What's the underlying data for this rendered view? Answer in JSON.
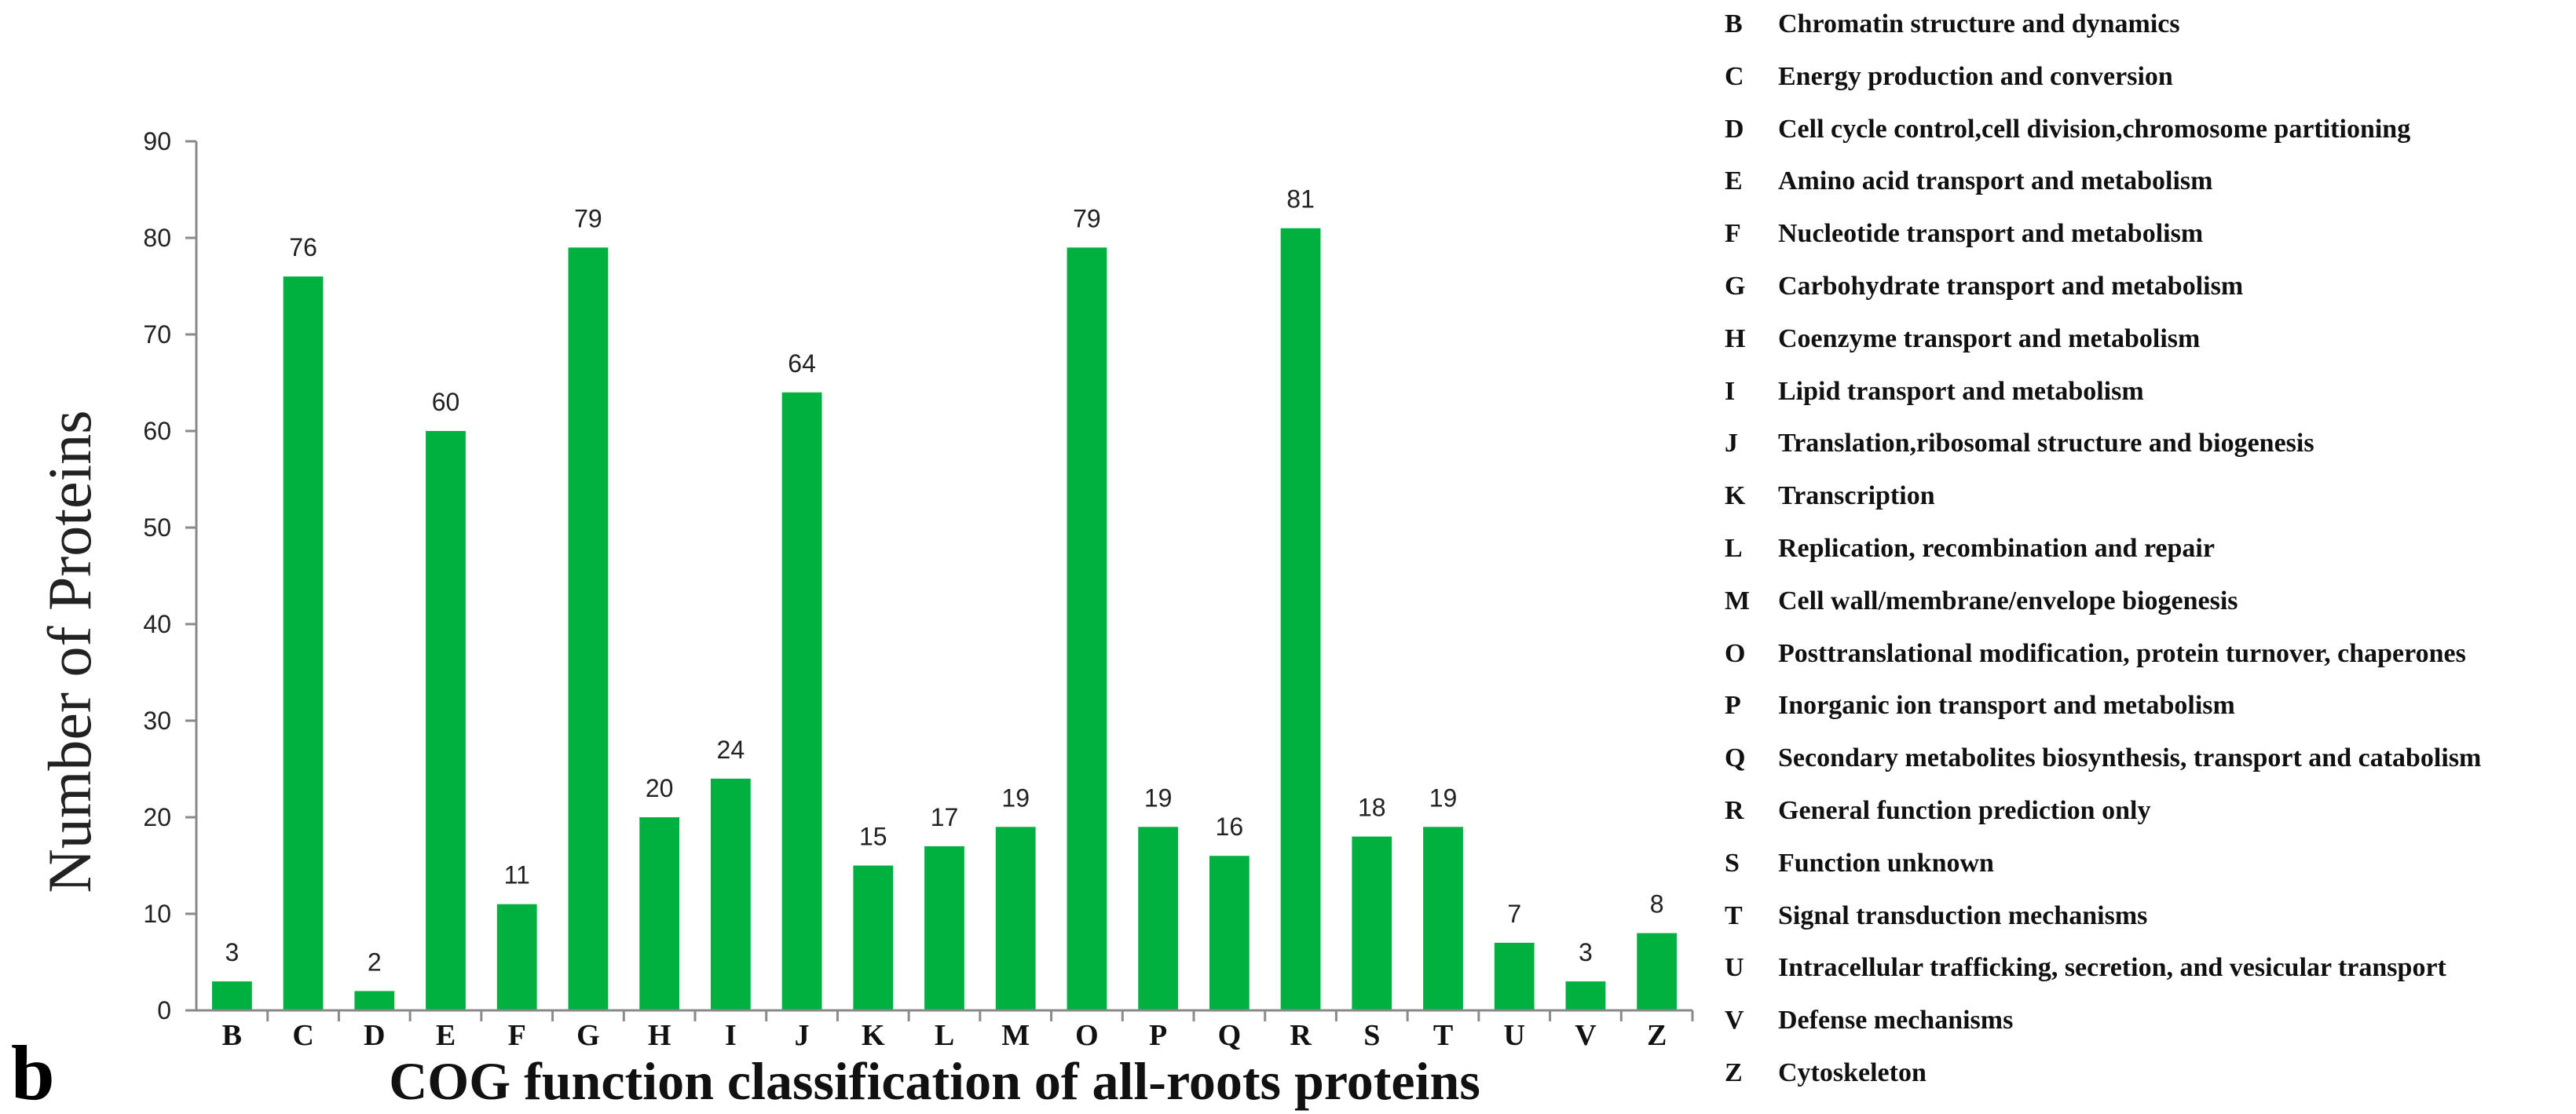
{
  "panel_label": "b",
  "chart_data": {
    "type": "bar",
    "title": "",
    "xlabel": "COG function classification of all-roots proteins",
    "ylabel": "Number of Proteins",
    "ylim": [
      0,
      90
    ],
    "yticks": [
      0,
      10,
      20,
      30,
      40,
      50,
      60,
      70,
      80,
      90
    ],
    "grid": false,
    "bar_color": "#00b140",
    "categories": [
      "B",
      "C",
      "D",
      "E",
      "F",
      "G",
      "H",
      "I",
      "J",
      "K",
      "L",
      "M",
      "O",
      "P",
      "Q",
      "R",
      "S",
      "T",
      "U",
      "V",
      "Z"
    ],
    "values": [
      3,
      76,
      2,
      60,
      11,
      79,
      20,
      24,
      64,
      15,
      17,
      19,
      79,
      19,
      16,
      81,
      18,
      19,
      7,
      3,
      8
    ],
    "legend_placement": "right"
  },
  "legend": [
    {
      "code": "B",
      "text": "Chromatin structure and dynamics"
    },
    {
      "code": "C",
      "text": "Energy production and conversion"
    },
    {
      "code": "D",
      "text": "Cell cycle control,cell division,chromosome partitioning"
    },
    {
      "code": "E",
      "text": "Amino acid transport and metabolism"
    },
    {
      "code": "F",
      "text": "Nucleotide transport and metabolism"
    },
    {
      "code": "G",
      "text": "Carbohydrate transport and metabolism"
    },
    {
      "code": "H",
      "text": "Coenzyme transport and metabolism"
    },
    {
      "code": "I",
      "text": "Lipid transport and metabolism"
    },
    {
      "code": "J",
      "text": "Translation,ribosomal structure and biogenesis"
    },
    {
      "code": "K",
      "text": "Transcription"
    },
    {
      "code": "L",
      "text": "Replication, recombination and repair"
    },
    {
      "code": "M",
      "text": "Cell wall/membrane/envelope biogenesis"
    },
    {
      "code": "O",
      "text": "Posttranslational modification, protein turnover, chaperones"
    },
    {
      "code": "P",
      "text": "Inorganic ion transport and metabolism"
    },
    {
      "code": "Q",
      "text": "Secondary metabolites biosynthesis, transport and catabolism"
    },
    {
      "code": "R",
      "text": "General function prediction only"
    },
    {
      "code": "S",
      "text": "Function unknown"
    },
    {
      "code": "T",
      "text": "Signal transduction mechanisms"
    },
    {
      "code": "U",
      "text": "Intracellular trafficking, secretion, and vesicular transport"
    },
    {
      "code": "V",
      "text": "Defense mechanisms"
    },
    {
      "code": "Z",
      "text": "Cytoskeleton"
    }
  ]
}
